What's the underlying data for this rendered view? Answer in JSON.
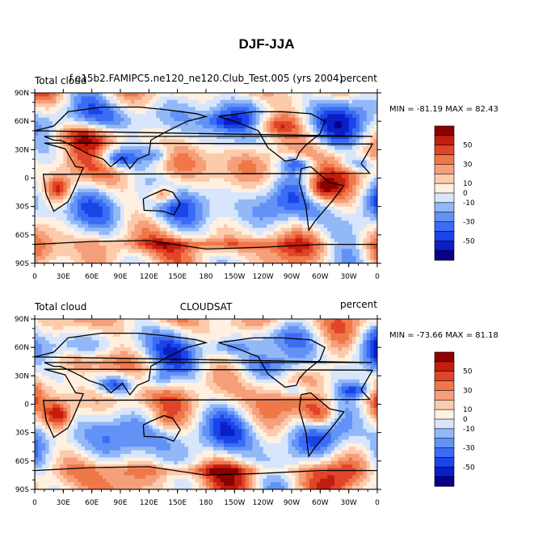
{
  "figure": {
    "title": "DJF-JJA"
  },
  "chart_data": [
    {
      "type": "heatmap",
      "left_label": "Total cloud",
      "center_label": "f.e15b2.FAMIPC5.ne120_ne120.Club_Test.005 (yrs 2004)",
      "right_label": "percent",
      "stats_text": "MIN = -81.19 MAX =  82.43",
      "min": -81.19,
      "max": 82.43,
      "xlim": [
        0,
        360
      ],
      "ylim": [
        -90,
        90
      ],
      "x_ticks": [
        "0",
        "30E",
        "60E",
        "90E",
        "120E",
        "150E",
        "180",
        "150W",
        "120W",
        "90W",
        "60W",
        "30W",
        "0"
      ],
      "y_ticks": [
        "90N",
        "60N",
        "30N",
        "0",
        "30S",
        "60S",
        "90S"
      ],
      "colorbar": {
        "levels": [
          -60,
          -50,
          -40,
          -30,
          -20,
          -10,
          0,
          10,
          20,
          30,
          40,
          50,
          60
        ],
        "labels": [
          "50",
          "30",
          "10",
          "0",
          "-10",
          "-30",
          "-50"
        ],
        "colors": [
          "#08008b",
          "#0b1fc6",
          "#1944e8",
          "#3a6cf5",
          "#6292f5",
          "#92b8f7",
          "#d8e6fb",
          "#fff0e0",
          "#fccbab",
          "#f59f7b",
          "#f07848",
          "#e0452a",
          "#c21d0e",
          "#8c0000"
        ]
      }
    },
    {
      "type": "heatmap",
      "left_label": "Total cloud",
      "center_label": "CLOUDSAT",
      "right_label": "percent",
      "stats_text": "MIN = -73.66 MAX =  81.18",
      "min": -73.66,
      "max": 81.18,
      "xlim": [
        0,
        360
      ],
      "ylim": [
        -90,
        90
      ],
      "x_ticks": [
        "0",
        "30E",
        "60E",
        "90E",
        "120E",
        "150E",
        "180",
        "150W",
        "120W",
        "90W",
        "60W",
        "30W",
        "0"
      ],
      "y_ticks": [
        "90N",
        "60N",
        "30N",
        "0",
        "30S",
        "60S",
        "90S"
      ],
      "colorbar": {
        "levels": [
          -60,
          -50,
          -40,
          -30,
          -20,
          -10,
          0,
          10,
          20,
          30,
          40,
          50,
          60
        ],
        "labels": [
          "50",
          "30",
          "10",
          "0",
          "-10",
          "-30",
          "-50"
        ],
        "colors": [
          "#08008b",
          "#0b1fc6",
          "#1944e8",
          "#3a6cf5",
          "#6292f5",
          "#92b8f7",
          "#d8e6fb",
          "#fff0e0",
          "#fccbab",
          "#f59f7b",
          "#f07848",
          "#e0452a",
          "#c21d0e",
          "#8c0000"
        ]
      }
    }
  ]
}
